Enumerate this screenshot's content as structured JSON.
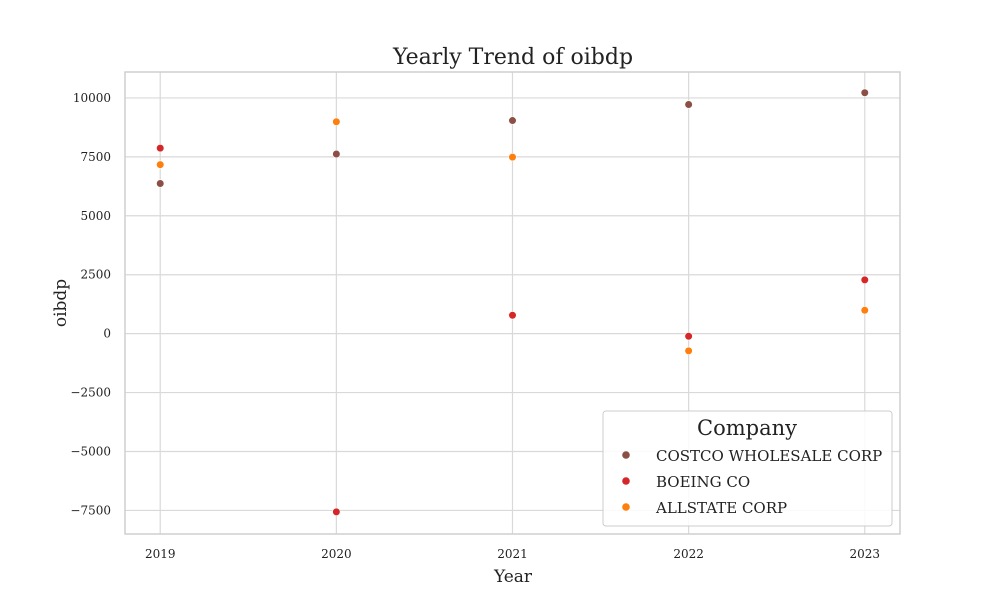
{
  "chart_data": {
    "type": "scatter",
    "title": "Yearly Trend of oibdp",
    "xlabel": "Year",
    "ylabel": "oibdp",
    "x": [
      2019,
      2020,
      2021,
      2022,
      2023
    ],
    "xlim": [
      2018.8,
      2023.2
    ],
    "ylim": [
      -8500,
      11100
    ],
    "yticks": [
      -7500,
      -5000,
      -2500,
      0,
      2500,
      5000,
      7500,
      10000
    ],
    "grid": true,
    "legend": {
      "title": "Company",
      "placement": "lower-right"
    },
    "series": [
      {
        "name": "COSTCO WHOLESALE CORP",
        "color": "#8c4f45",
        "values": [
          6370,
          7620,
          9040,
          9720,
          10220
        ]
      },
      {
        "name": "BOEING CO",
        "color": "#d62728",
        "values": [
          7870,
          -7560,
          780,
          -110,
          2280
        ]
      },
      {
        "name": "ALLSTATE CORP",
        "color": "#ff7f0e",
        "values": [
          7170,
          8990,
          7490,
          -730,
          990
        ]
      }
    ]
  }
}
